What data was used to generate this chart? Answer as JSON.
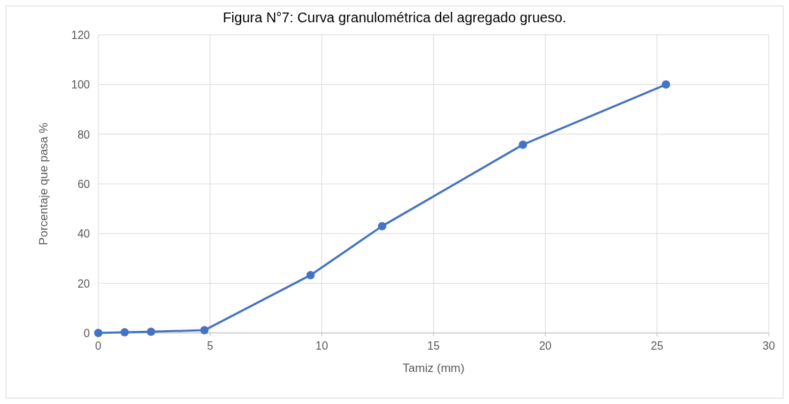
{
  "chart_data": {
    "type": "line",
    "title": "Figura N°7: Curva granulométrica del agregado grueso.",
    "xlabel": "Tamiz (mm)",
    "ylabel": "Porcentaje que pasa %",
    "x": [
      0,
      1.18,
      2.36,
      4.75,
      9.5,
      12.7,
      19,
      25.4
    ],
    "series": [
      {
        "color": "#4472c4",
        "values": [
          0,
          0.3,
          0.5,
          1.1,
          23.3,
          43,
          75.8,
          100
        ]
      }
    ],
    "xlim": [
      0,
      30
    ],
    "xticks": [
      0,
      5,
      10,
      15,
      20,
      25,
      30
    ],
    "ylim": [
      0,
      120
    ],
    "yticks": [
      0,
      20,
      40,
      60,
      80,
      100,
      120
    ],
    "grid": true,
    "marker": "circle",
    "line_style": "solid"
  }
}
